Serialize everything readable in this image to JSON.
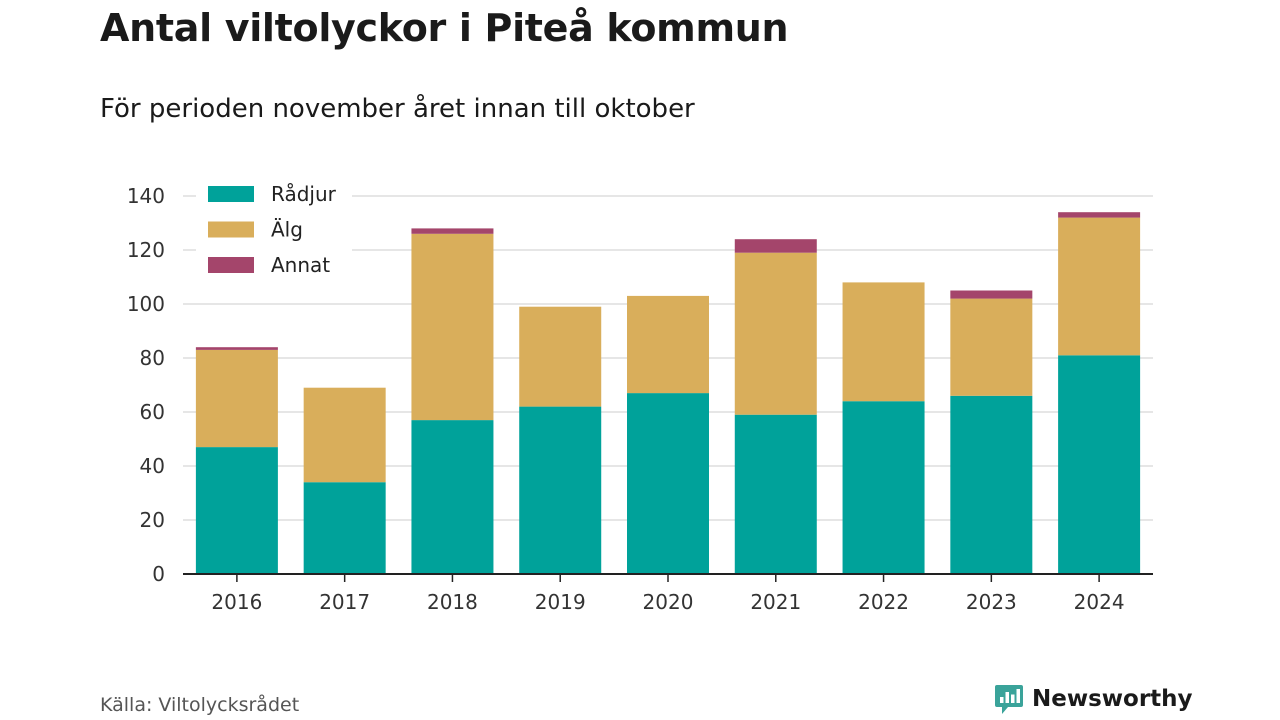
{
  "title": "Antal viltolyckor i Piteå kommun",
  "subtitle": "För perioden november året innan till oktober",
  "source": "Källa: Viltolycksrådet",
  "brand": "Newsworthy",
  "colors": {
    "radjur": "#00a29a",
    "alg": "#d9ae5b",
    "annat": "#a4456b",
    "grid": "#dddddd",
    "axis": "#222222",
    "brand": "#3aa39a"
  },
  "chart_data": {
    "type": "bar",
    "stacked": true,
    "categories": [
      "2016",
      "2017",
      "2018",
      "2019",
      "2020",
      "2021",
      "2022",
      "2023",
      "2024"
    ],
    "series": [
      {
        "name": "Rådjur",
        "color": "#00a29a",
        "values": [
          47,
          34,
          57,
          62,
          67,
          59,
          64,
          66,
          81
        ]
      },
      {
        "name": "Älg",
        "color": "#d9ae5b",
        "values": [
          36,
          35,
          69,
          37,
          36,
          60,
          44,
          36,
          51
        ]
      },
      {
        "name": "Annat",
        "color": "#a4456b",
        "values": [
          1,
          0,
          2,
          0,
          0,
          5,
          0,
          3,
          2
        ]
      }
    ],
    "ylim": [
      0,
      140
    ],
    "yticks": [
      0,
      20,
      40,
      60,
      80,
      100,
      120,
      140
    ],
    "grid": true,
    "legend_position": "top-left"
  }
}
